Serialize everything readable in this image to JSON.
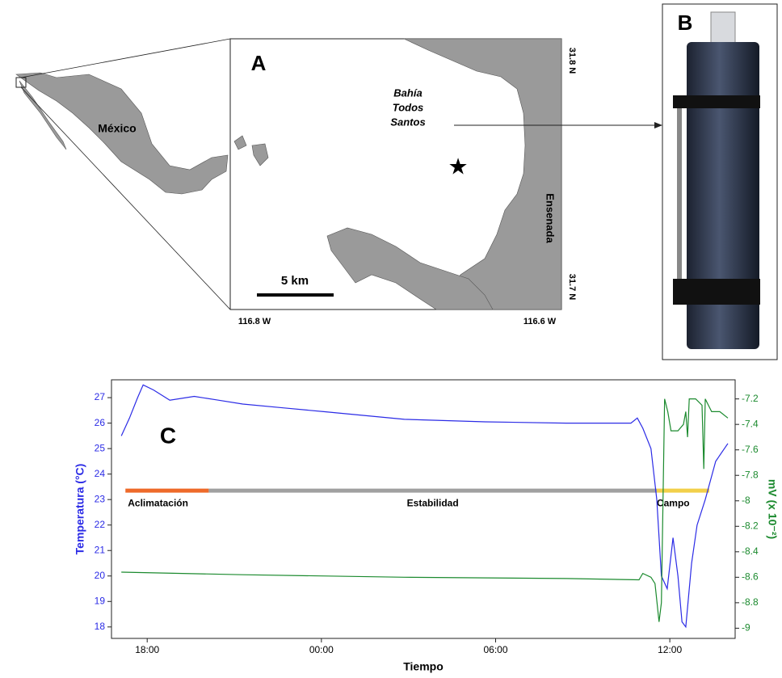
{
  "panels": {
    "A": {
      "label": "A",
      "country": "México",
      "bay": [
        "Bahía",
        "Todos",
        "Santos"
      ],
      "city": "Ensenada",
      "scale": "5 km",
      "lat_ticks": [
        "31.8 N",
        "31.7 N"
      ],
      "lon_ticks": [
        "116.8 W",
        "116.6 W"
      ]
    },
    "B": {
      "label": "B"
    }
  },
  "chart_data": {
    "type": "line",
    "annotation": "C",
    "x_label": "Tiempo",
    "y_label": "Temperatura (°C)",
    "y2_label": "mV (x 10⁻²)",
    "xlim": [
      16.77,
      38.25
    ],
    "xticks": [
      {
        "value": 18,
        "label": "18:00"
      },
      {
        "value": 24,
        "label": "00:00"
      },
      {
        "value": 30,
        "label": "06:00"
      },
      {
        "value": 36,
        "label": "12:00"
      }
    ],
    "ylim": [
      17.55,
      27.7
    ],
    "yticks": [
      18,
      19,
      20,
      21,
      22,
      23,
      24,
      25,
      26,
      27
    ],
    "y2lim": [
      -9.08,
      -7.05
    ],
    "y2ticks": [
      -9,
      -8.8,
      -8.6,
      -8.4,
      -8.2,
      -8,
      -7.8,
      -7.6,
      -7.4,
      -7.2
    ],
    "series": [
      {
        "color": "#2b2be6",
        "x": [
          17.11,
          17.39,
          17.67,
          17.86,
          18.22,
          18.78,
          19.62,
          20.45,
          21.29,
          22.68,
          24.08,
          26.86,
          29.64,
          32.43,
          34.66,
          34.88,
          35.07,
          35.35,
          35.55,
          35.71,
          35.91,
          36.11,
          36.28,
          36.42,
          36.55,
          36.75,
          36.94,
          37.22,
          37.58,
          38.0
        ],
        "values": [
          25.5,
          26.2,
          27.0,
          27.5,
          27.3,
          26.9,
          27.05,
          26.9,
          26.75,
          26.6,
          26.45,
          26.15,
          26.05,
          26.0,
          26.0,
          26.2,
          25.8,
          25.0,
          23.0,
          20.0,
          19.5,
          21.5,
          20.0,
          18.2,
          18.0,
          20.5,
          22.0,
          23.0,
          24.5,
          25.2
        ]
      },
      {
        "color": "#1b8a2e",
        "axis": "y2",
        "x": [
          17.11,
          21.29,
          26.86,
          32.43,
          34.94,
          35.07,
          35.35,
          35.49,
          35.63,
          35.71,
          35.82,
          35.93,
          36.04,
          36.28,
          36.47,
          36.55,
          36.61,
          36.67,
          36.89,
          37.11,
          37.17,
          37.22,
          37.44,
          37.72,
          38.0
        ],
        "values": [
          -8.56,
          -8.58,
          -8.6,
          -8.61,
          -8.62,
          -8.57,
          -8.6,
          -8.65,
          -8.95,
          -8.8,
          -7.2,
          -7.3,
          -7.45,
          -7.45,
          -7.4,
          -7.3,
          -7.5,
          -7.2,
          -7.2,
          -7.25,
          -7.75,
          -7.2,
          -7.3,
          -7.3,
          -7.35
        ]
      }
    ],
    "phase_level": 23.35,
    "phases": [
      {
        "name": "Aclimatación",
        "color": "#ee6a2a",
        "start": 17.25,
        "end": 20.12
      },
      {
        "name": "Estabilidad",
        "color": "#a0a0a0",
        "start": 20.12,
        "end": 35.55
      },
      {
        "name": "Campo",
        "color": "#f2d04a",
        "start": 35.55,
        "end": 37.36
      }
    ]
  }
}
